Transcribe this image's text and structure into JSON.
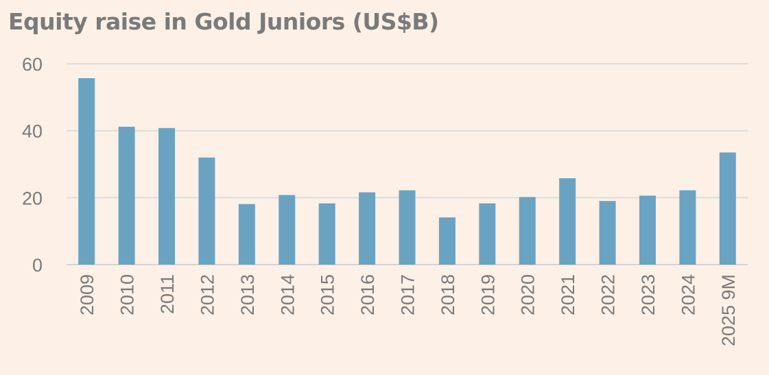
{
  "chart_data": {
    "type": "bar",
    "title": "Equity raise in Gold Juniors (US$B)",
    "categories": [
      "2009",
      "2010",
      "2011",
      "2012",
      "2013",
      "2014",
      "2015",
      "2016",
      "2017",
      "2018",
      "2019",
      "2020",
      "2021",
      "2022",
      "2023",
      "2024",
      "2025 9M"
    ],
    "values": [
      55.7,
      41.2,
      40.8,
      32.0,
      18.1,
      20.8,
      18.3,
      21.6,
      22.2,
      14.1,
      18.3,
      20.2,
      25.8,
      19.0,
      20.6,
      22.2,
      33.5
    ],
    "ylim": [
      0,
      60
    ],
    "yticks": [
      0,
      20,
      40,
      60
    ],
    "grid": true,
    "colors": {
      "bar": "#6aa3c2",
      "grid": "#dcdcdc",
      "axis": "#d4d4d4",
      "text": "#7a7a7a",
      "background": "#fdf0e6"
    }
  }
}
